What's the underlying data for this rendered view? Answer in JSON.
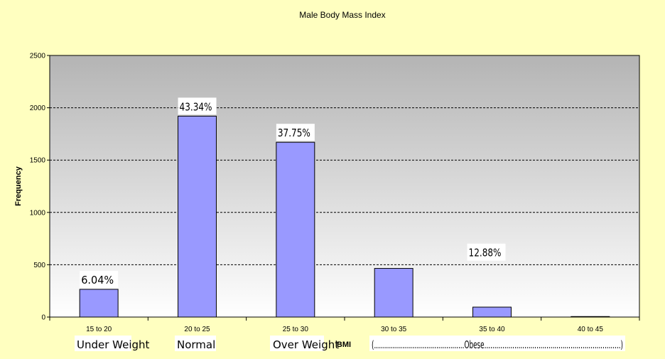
{
  "chart_data": {
    "type": "bar",
    "title": "Male Body Mass Index",
    "xlabel": "BMI",
    "ylabel": "Frequency",
    "categories": [
      "15 to 20",
      "20 to 25",
      "25 to 30",
      "30 to 35",
      "35 to 40",
      "40 to 45"
    ],
    "values": [
      265,
      1920,
      1670,
      465,
      95,
      5
    ],
    "ylim": [
      0,
      2500
    ],
    "yticks": [
      0,
      500,
      1000,
      1500,
      2000,
      2500
    ],
    "grid": true,
    "legend": "none",
    "plot_background": [
      "#b4b4b4",
      "#ffffff"
    ],
    "bar_color": "#9999ff",
    "data_labels": [
      {
        "category": "15 to 20",
        "text": "6.04%"
      },
      {
        "category": "20 to 25",
        "text": "43.34%"
      },
      {
        "category": "25 to 30",
        "text": "37.75%"
      },
      {
        "category": "35 to 40",
        "text": "12.88%"
      }
    ],
    "category_annotations": {
      "under_weight": "Under Weight",
      "normal": "Normal",
      "over_weight": "Over Weight",
      "obese": "(.............................................Obese....................................................................)"
    }
  }
}
